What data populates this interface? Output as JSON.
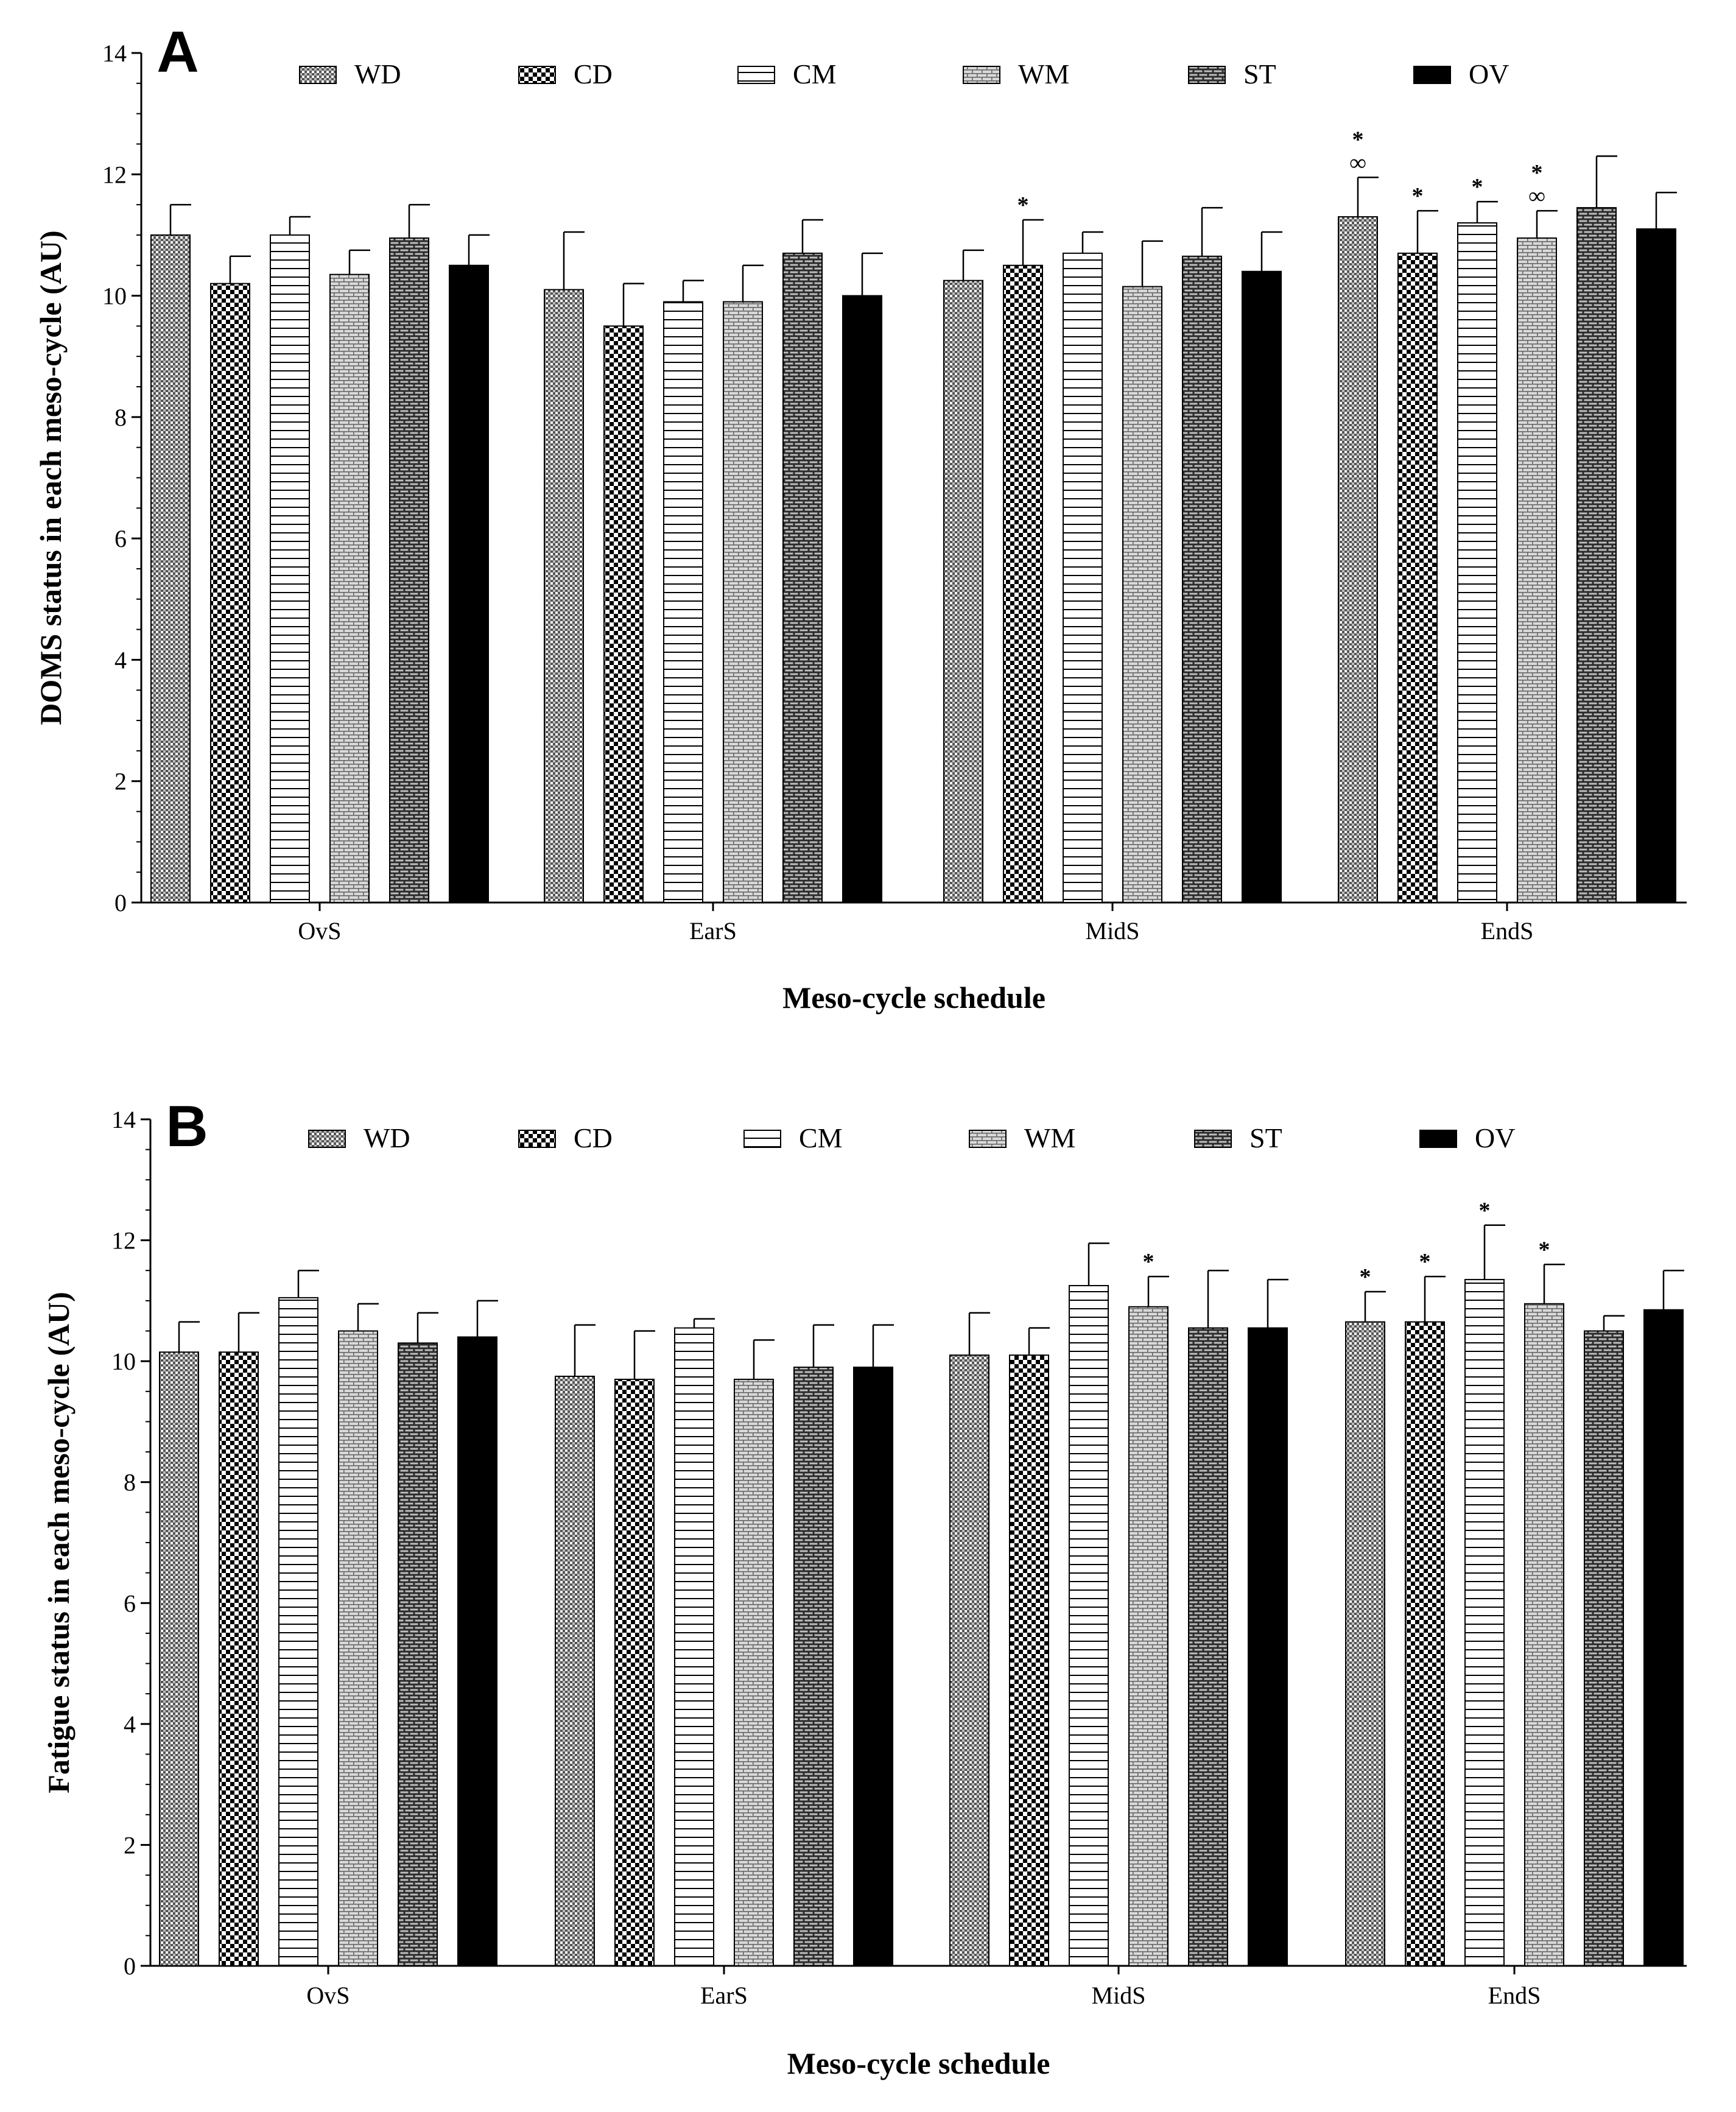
{
  "series_names": [
    "WD",
    "CD",
    "CM",
    "WM",
    "ST",
    "OV"
  ],
  "chart_data": [
    {
      "type": "bar",
      "panel_label": "A",
      "title": "",
      "categories": [
        "OvS",
        "EarS",
        "MidS",
        "EndS"
      ],
      "xlabel": "Meso-cycle schedule",
      "ylabel": "DOMS status in each meso-cycle (AU)",
      "ylim": [
        0,
        14
      ],
      "yticks": [
        "0",
        "2",
        "4",
        "6",
        "8",
        "10",
        "12",
        "14"
      ],
      "grid": false,
      "legend_position": "top",
      "series": [
        {
          "name": "WD",
          "values": [
            11.0,
            10.1,
            10.25,
            11.3
          ],
          "errors": [
            0.5,
            0.95,
            0.5,
            0.65
          ],
          "annotations": [
            "",
            "",
            "",
            "*∞"
          ]
        },
        {
          "name": "CD",
          "values": [
            10.2,
            9.5,
            10.5,
            10.7
          ],
          "errors": [
            0.45,
            0.7,
            0.75,
            0.7
          ],
          "annotations": [
            "",
            "",
            "*",
            "*"
          ]
        },
        {
          "name": "CM",
          "values": [
            11.0,
            9.9,
            10.7,
            11.2
          ],
          "errors": [
            0.3,
            0.35,
            0.35,
            0.35
          ],
          "annotations": [
            "",
            "",
            "",
            "*"
          ]
        },
        {
          "name": "WM",
          "values": [
            10.35,
            9.9,
            10.15,
            10.95
          ],
          "errors": [
            0.4,
            0.6,
            0.75,
            0.45
          ],
          "annotations": [
            "",
            "",
            "",
            "*∞"
          ]
        },
        {
          "name": "ST",
          "values": [
            10.95,
            10.7,
            10.65,
            11.45
          ],
          "errors": [
            0.55,
            0.55,
            0.8,
            0.85
          ],
          "annotations": [
            "",
            "",
            "",
            ""
          ]
        },
        {
          "name": "OV",
          "values": [
            10.5,
            10.0,
            10.4,
            11.1
          ],
          "errors": [
            0.5,
            0.7,
            0.65,
            0.6
          ],
          "annotations": [
            "",
            "",
            "",
            ""
          ]
        }
      ]
    },
    {
      "type": "bar",
      "panel_label": "B",
      "title": "",
      "categories": [
        "OvS",
        "EarS",
        "MidS",
        "EndS"
      ],
      "xlabel": "Meso-cycle schedule",
      "ylabel": "Fatigue status in each meso-cycle (AU)",
      "ylim": [
        0,
        14
      ],
      "yticks": [
        "0",
        "2",
        "4",
        "6",
        "8",
        "10",
        "12",
        "14"
      ],
      "grid": false,
      "legend_position": "top",
      "series": [
        {
          "name": "WD",
          "values": [
            10.15,
            9.75,
            10.1,
            10.65
          ],
          "errors": [
            0.5,
            0.85,
            0.7,
            0.5
          ],
          "annotations": [
            "",
            "",
            "",
            "*"
          ]
        },
        {
          "name": "CD",
          "values": [
            10.15,
            9.7,
            10.1,
            10.65
          ],
          "errors": [
            0.65,
            0.8,
            0.45,
            0.75
          ],
          "annotations": [
            "",
            "",
            "",
            "*"
          ]
        },
        {
          "name": "CM",
          "values": [
            11.05,
            10.55,
            11.25,
            11.35
          ],
          "errors": [
            0.45,
            0.15,
            0.7,
            0.9
          ],
          "annotations": [
            "",
            "",
            "",
            "*"
          ]
        },
        {
          "name": "WM",
          "values": [
            10.5,
            9.7,
            10.9,
            10.95
          ],
          "errors": [
            0.45,
            0.65,
            0.5,
            0.65
          ],
          "annotations": [
            "",
            "",
            "*",
            "*"
          ]
        },
        {
          "name": "ST",
          "values": [
            10.3,
            9.9,
            10.55,
            10.5
          ],
          "errors": [
            0.5,
            0.7,
            0.95,
            0.25
          ],
          "annotations": [
            "",
            "",
            "",
            ""
          ]
        },
        {
          "name": "OV",
          "values": [
            10.4,
            9.9,
            10.55,
            10.85
          ],
          "errors": [
            0.6,
            0.7,
            0.8,
            0.65
          ],
          "annotations": [
            "",
            "",
            "",
            ""
          ]
        }
      ]
    }
  ]
}
